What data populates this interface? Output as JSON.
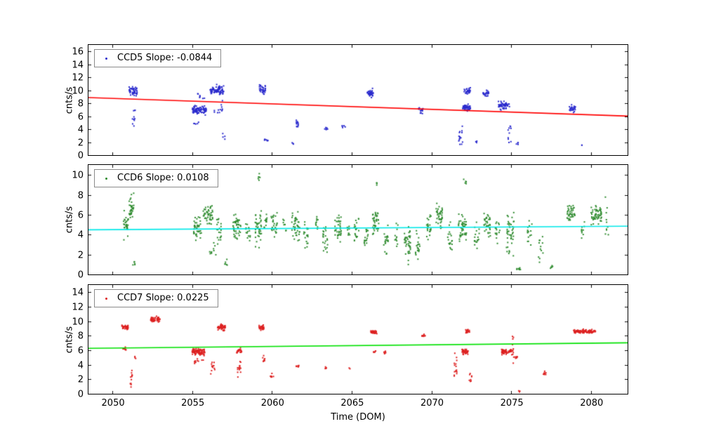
{
  "figure": {
    "background": "#ffffff",
    "xlabel": "Time (DOM)"
  },
  "chart_data": [
    {
      "type": "scatter",
      "legend": "CCD5 Slope: -0.0844",
      "ylabel": "cnts/s",
      "point_color": "#2a2acd",
      "line_color": "#ff0000",
      "xlim": [
        2048.5,
        2082.3
      ],
      "ylim": [
        0,
        17
      ],
      "xticks": [
        2050,
        2055,
        2060,
        2065,
        2070,
        2075,
        2080
      ],
      "yticks": [
        0,
        2,
        4,
        6,
        8,
        10,
        12,
        14,
        16
      ],
      "show_xticklabels": false,
      "trend": {
        "slope": -0.0844,
        "y_at_2050": 8.75
      },
      "clusters": [
        {
          "x": 2051.3,
          "dx": 0.25,
          "y": 9.9,
          "dy": 1.0,
          "n": 45
        },
        {
          "x": 2051.35,
          "dx": 0.1,
          "y": 5.5,
          "dy": 3.0,
          "n": 10
        },
        {
          "x": 2055.45,
          "dx": 0.45,
          "y": 7.0,
          "dy": 1.0,
          "n": 90
        },
        {
          "x": 2055.5,
          "dx": 0.3,
          "y": 9.0,
          "dy": 1.0,
          "n": 8
        },
        {
          "x": 2055.3,
          "dx": 0.2,
          "y": 4.8,
          "dy": 0.5,
          "n": 5
        },
        {
          "x": 2056.55,
          "dx": 0.45,
          "y": 10.0,
          "dy": 1.0,
          "n": 80
        },
        {
          "x": 2056.6,
          "dx": 0.3,
          "y": 7.0,
          "dy": 1.5,
          "n": 12
        },
        {
          "x": 2057.0,
          "dx": 0.1,
          "y": 3.0,
          "dy": 1.2,
          "n": 4
        },
        {
          "x": 2059.4,
          "dx": 0.2,
          "y": 10.2,
          "dy": 1.2,
          "n": 35
        },
        {
          "x": 2059.65,
          "dx": 0.15,
          "y": 2.3,
          "dy": 0.5,
          "n": 8
        },
        {
          "x": 2061.6,
          "dx": 0.08,
          "y": 4.8,
          "dy": 0.9,
          "n": 12
        },
        {
          "x": 2061.3,
          "dx": 0.05,
          "y": 1.9,
          "dy": 0.3,
          "n": 3
        },
        {
          "x": 2063.4,
          "dx": 0.1,
          "y": 4.0,
          "dy": 0.4,
          "n": 6
        },
        {
          "x": 2064.5,
          "dx": 0.1,
          "y": 4.4,
          "dy": 0.3,
          "n": 5
        },
        {
          "x": 2066.15,
          "dx": 0.2,
          "y": 9.6,
          "dy": 0.9,
          "n": 40
        },
        {
          "x": 2069.35,
          "dx": 0.15,
          "y": 6.9,
          "dy": 0.6,
          "n": 18
        },
        {
          "x": 2071.85,
          "dx": 0.15,
          "y": 3.0,
          "dy": 2.0,
          "n": 15
        },
        {
          "x": 2072.2,
          "dx": 0.25,
          "y": 7.4,
          "dy": 0.7,
          "n": 45
        },
        {
          "x": 2072.25,
          "dx": 0.2,
          "y": 9.8,
          "dy": 0.8,
          "n": 25
        },
        {
          "x": 2072.8,
          "dx": 0.05,
          "y": 2.0,
          "dy": 0.3,
          "n": 3
        },
        {
          "x": 2073.4,
          "dx": 0.2,
          "y": 9.6,
          "dy": 0.7,
          "n": 22
        },
        {
          "x": 2074.55,
          "dx": 0.35,
          "y": 7.6,
          "dy": 0.9,
          "n": 55
        },
        {
          "x": 2074.9,
          "dx": 0.1,
          "y": 3.5,
          "dy": 2.5,
          "n": 10
        },
        {
          "x": 2075.4,
          "dx": 0.1,
          "y": 1.8,
          "dy": 0.4,
          "n": 4
        },
        {
          "x": 2078.85,
          "dx": 0.2,
          "y": 7.2,
          "dy": 0.8,
          "n": 28
        },
        {
          "x": 2079.4,
          "dx": 0.05,
          "y": 1.5,
          "dy": 0.2,
          "n": 2
        }
      ]
    },
    {
      "type": "scatter",
      "legend": "CCD6 Slope: 0.0108",
      "ylabel": "cnts/s",
      "point_color": "#2f8b2f",
      "line_color": "#00e8e8",
      "xlim": [
        2048.5,
        2082.3
      ],
      "ylim": [
        0,
        11
      ],
      "xticks": [
        2050,
        2055,
        2060,
        2065,
        2070,
        2075,
        2080
      ],
      "yticks": [
        0,
        2,
        4,
        6,
        8,
        10
      ],
      "show_xticklabels": false,
      "trend": {
        "slope": 0.0108,
        "y_at_2050": 4.5
      },
      "clusters": [
        {
          "x": 2050.85,
          "dx": 0.15,
          "y": 5.0,
          "dy": 1.6,
          "n": 30
        },
        {
          "x": 2051.2,
          "dx": 0.15,
          "y": 6.8,
          "dy": 1.6,
          "n": 35
        },
        {
          "x": 2051.35,
          "dx": 0.1,
          "y": 1.0,
          "dy": 0.4,
          "n": 5
        },
        {
          "x": 2055.35,
          "dx": 0.25,
          "y": 4.8,
          "dy": 1.8,
          "n": 40
        },
        {
          "x": 2056.0,
          "dx": 0.3,
          "y": 6.0,
          "dy": 1.4,
          "n": 45
        },
        {
          "x": 2056.3,
          "dx": 0.2,
          "y": 2.5,
          "dy": 1.0,
          "n": 10
        },
        {
          "x": 2056.7,
          "dx": 0.15,
          "y": 4.5,
          "dy": 2.2,
          "n": 20
        },
        {
          "x": 2057.1,
          "dx": 0.1,
          "y": 1.2,
          "dy": 0.7,
          "n": 6
        },
        {
          "x": 2057.8,
          "dx": 0.25,
          "y": 4.8,
          "dy": 2.0,
          "n": 45
        },
        {
          "x": 2058.5,
          "dx": 0.15,
          "y": 4.5,
          "dy": 1.5,
          "n": 15
        },
        {
          "x": 2059.15,
          "dx": 0.2,
          "y": 4.5,
          "dy": 2.4,
          "n": 40
        },
        {
          "x": 2059.2,
          "dx": 0.1,
          "y": 9.8,
          "dy": 1.0,
          "n": 6
        },
        {
          "x": 2059.6,
          "dx": 0.1,
          "y": 5.5,
          "dy": 1.3,
          "n": 12
        },
        {
          "x": 2060.15,
          "dx": 0.2,
          "y": 4.8,
          "dy": 2.0,
          "n": 25
        },
        {
          "x": 2060.8,
          "dx": 0.1,
          "y": 5.0,
          "dy": 1.0,
          "n": 8
        },
        {
          "x": 2061.5,
          "dx": 0.25,
          "y": 5.0,
          "dy": 2.2,
          "n": 40
        },
        {
          "x": 2062.15,
          "dx": 0.15,
          "y": 4.0,
          "dy": 1.8,
          "n": 18
        },
        {
          "x": 2062.8,
          "dx": 0.1,
          "y": 5.2,
          "dy": 1.2,
          "n": 10
        },
        {
          "x": 2063.35,
          "dx": 0.15,
          "y": 3.8,
          "dy": 2.4,
          "n": 22
        },
        {
          "x": 2064.15,
          "dx": 0.2,
          "y": 4.5,
          "dy": 2.0,
          "n": 35
        },
        {
          "x": 2064.8,
          "dx": 0.1,
          "y": 4.5,
          "dy": 1.4,
          "n": 10
        },
        {
          "x": 2065.3,
          "dx": 0.15,
          "y": 4.5,
          "dy": 2.2,
          "n": 20
        },
        {
          "x": 2065.9,
          "dx": 0.15,
          "y": 3.8,
          "dy": 2.0,
          "n": 18
        },
        {
          "x": 2066.5,
          "dx": 0.2,
          "y": 5.2,
          "dy": 1.8,
          "n": 40
        },
        {
          "x": 2066.6,
          "dx": 0.05,
          "y": 9.0,
          "dy": 0.8,
          "n": 4
        },
        {
          "x": 2067.15,
          "dx": 0.15,
          "y": 3.5,
          "dy": 2.2,
          "n": 20
        },
        {
          "x": 2067.8,
          "dx": 0.1,
          "y": 4.0,
          "dy": 1.6,
          "n": 12
        },
        {
          "x": 2068.5,
          "dx": 0.2,
          "y": 3.2,
          "dy": 2.4,
          "n": 40
        },
        {
          "x": 2069.15,
          "dx": 0.15,
          "y": 2.8,
          "dy": 2.0,
          "n": 20
        },
        {
          "x": 2069.85,
          "dx": 0.15,
          "y": 5.0,
          "dy": 1.6,
          "n": 22
        },
        {
          "x": 2070.5,
          "dx": 0.2,
          "y": 5.8,
          "dy": 1.8,
          "n": 40
        },
        {
          "x": 2071.15,
          "dx": 0.15,
          "y": 3.5,
          "dy": 2.2,
          "n": 18
        },
        {
          "x": 2071.95,
          "dx": 0.25,
          "y": 4.8,
          "dy": 2.2,
          "n": 45
        },
        {
          "x": 2072.1,
          "dx": 0.1,
          "y": 9.3,
          "dy": 0.7,
          "n": 5
        },
        {
          "x": 2072.85,
          "dx": 0.15,
          "y": 3.8,
          "dy": 2.0,
          "n": 18
        },
        {
          "x": 2073.5,
          "dx": 0.2,
          "y": 5.0,
          "dy": 1.8,
          "n": 35
        },
        {
          "x": 2074.15,
          "dx": 0.15,
          "y": 4.2,
          "dy": 1.8,
          "n": 15
        },
        {
          "x": 2074.95,
          "dx": 0.25,
          "y": 4.0,
          "dy": 2.8,
          "n": 45
        },
        {
          "x": 2075.5,
          "dx": 0.15,
          "y": 0.6,
          "dy": 0.3,
          "n": 8
        },
        {
          "x": 2076.15,
          "dx": 0.15,
          "y": 4.0,
          "dy": 1.8,
          "n": 15
        },
        {
          "x": 2076.85,
          "dx": 0.15,
          "y": 2.8,
          "dy": 2.0,
          "n": 12
        },
        {
          "x": 2077.5,
          "dx": 0.1,
          "y": 0.7,
          "dy": 0.3,
          "n": 5
        },
        {
          "x": 2078.75,
          "dx": 0.25,
          "y": 6.3,
          "dy": 1.2,
          "n": 40
        },
        {
          "x": 2079.5,
          "dx": 0.1,
          "y": 4.5,
          "dy": 1.2,
          "n": 10
        },
        {
          "x": 2080.35,
          "dx": 0.35,
          "y": 6.0,
          "dy": 1.4,
          "n": 55
        },
        {
          "x": 2081.0,
          "dx": 0.1,
          "y": 5.5,
          "dy": 3.0,
          "n": 10
        }
      ]
    },
    {
      "type": "scatter",
      "legend": "CCD7 Slope: 0.0225",
      "ylabel": "cnts/s",
      "xlabel": "Time (DOM)",
      "point_color": "#dd2020",
      "line_color": "#00e100",
      "xlim": [
        2048.5,
        2082.3
      ],
      "ylim": [
        0,
        15
      ],
      "xticks": [
        2050,
        2055,
        2060,
        2065,
        2070,
        2075,
        2080
      ],
      "yticks": [
        0,
        2,
        4,
        6,
        8,
        10,
        12,
        14
      ],
      "show_xticklabels": true,
      "trend": {
        "slope": 0.0225,
        "y_at_2050": 6.3
      },
      "clusters": [
        {
          "x": 2050.8,
          "dx": 0.2,
          "y": 9.2,
          "dy": 0.5,
          "n": 35
        },
        {
          "x": 2050.75,
          "dx": 0.1,
          "y": 6.2,
          "dy": 0.3,
          "n": 8
        },
        {
          "x": 2051.2,
          "dx": 0.08,
          "y": 2.5,
          "dy": 2.0,
          "n": 12
        },
        {
          "x": 2051.45,
          "dx": 0.05,
          "y": 5.0,
          "dy": 0.3,
          "n": 3
        },
        {
          "x": 2052.7,
          "dx": 0.3,
          "y": 10.3,
          "dy": 0.5,
          "n": 50
        },
        {
          "x": 2055.4,
          "dx": 0.4,
          "y": 5.8,
          "dy": 0.7,
          "n": 85
        },
        {
          "x": 2055.45,
          "dx": 0.3,
          "y": 4.5,
          "dy": 0.5,
          "n": 10
        },
        {
          "x": 2056.3,
          "dx": 0.15,
          "y": 3.5,
          "dy": 1.5,
          "n": 12
        },
        {
          "x": 2056.85,
          "dx": 0.25,
          "y": 9.1,
          "dy": 0.7,
          "n": 50
        },
        {
          "x": 2057.95,
          "dx": 0.15,
          "y": 5.9,
          "dy": 0.6,
          "n": 22
        },
        {
          "x": 2057.95,
          "dx": 0.1,
          "y": 3.5,
          "dy": 1.8,
          "n": 14
        },
        {
          "x": 2059.35,
          "dx": 0.15,
          "y": 9.1,
          "dy": 0.5,
          "n": 32
        },
        {
          "x": 2059.5,
          "dx": 0.08,
          "y": 4.8,
          "dy": 1.2,
          "n": 8
        },
        {
          "x": 2060.0,
          "dx": 0.1,
          "y": 2.5,
          "dy": 0.4,
          "n": 6
        },
        {
          "x": 2061.6,
          "dx": 0.1,
          "y": 3.8,
          "dy": 0.5,
          "n": 8
        },
        {
          "x": 2063.35,
          "dx": 0.08,
          "y": 3.5,
          "dy": 0.4,
          "n": 5
        },
        {
          "x": 2064.85,
          "dx": 0.05,
          "y": 3.5,
          "dy": 0.2,
          "n": 2
        },
        {
          "x": 2066.4,
          "dx": 0.2,
          "y": 8.5,
          "dy": 0.4,
          "n": 32
        },
        {
          "x": 2066.45,
          "dx": 0.1,
          "y": 5.8,
          "dy": 0.3,
          "n": 6
        },
        {
          "x": 2067.1,
          "dx": 0.1,
          "y": 5.7,
          "dy": 0.3,
          "n": 8
        },
        {
          "x": 2069.5,
          "dx": 0.1,
          "y": 8.0,
          "dy": 0.3,
          "n": 10
        },
        {
          "x": 2071.5,
          "dx": 0.1,
          "y": 3.5,
          "dy": 2.8,
          "n": 15
        },
        {
          "x": 2072.1,
          "dx": 0.2,
          "y": 5.8,
          "dy": 0.5,
          "n": 38
        },
        {
          "x": 2072.25,
          "dx": 0.15,
          "y": 8.7,
          "dy": 0.4,
          "n": 18
        },
        {
          "x": 2072.45,
          "dx": 0.08,
          "y": 2.5,
          "dy": 1.5,
          "n": 8
        },
        {
          "x": 2074.7,
          "dx": 0.3,
          "y": 5.8,
          "dy": 0.5,
          "n": 65
        },
        {
          "x": 2075.1,
          "dx": 0.08,
          "y": 6.0,
          "dy": 4.5,
          "n": 12
        },
        {
          "x": 2075.35,
          "dx": 0.1,
          "y": 5.0,
          "dy": 0.3,
          "n": 6
        },
        {
          "x": 2075.5,
          "dx": 0.05,
          "y": 0.4,
          "dy": 0.2,
          "n": 3
        },
        {
          "x": 2077.1,
          "dx": 0.1,
          "y": 2.8,
          "dy": 0.5,
          "n": 8
        },
        {
          "x": 2079.6,
          "dx": 0.7,
          "y": 8.6,
          "dy": 0.35,
          "n": 95
        }
      ]
    }
  ]
}
